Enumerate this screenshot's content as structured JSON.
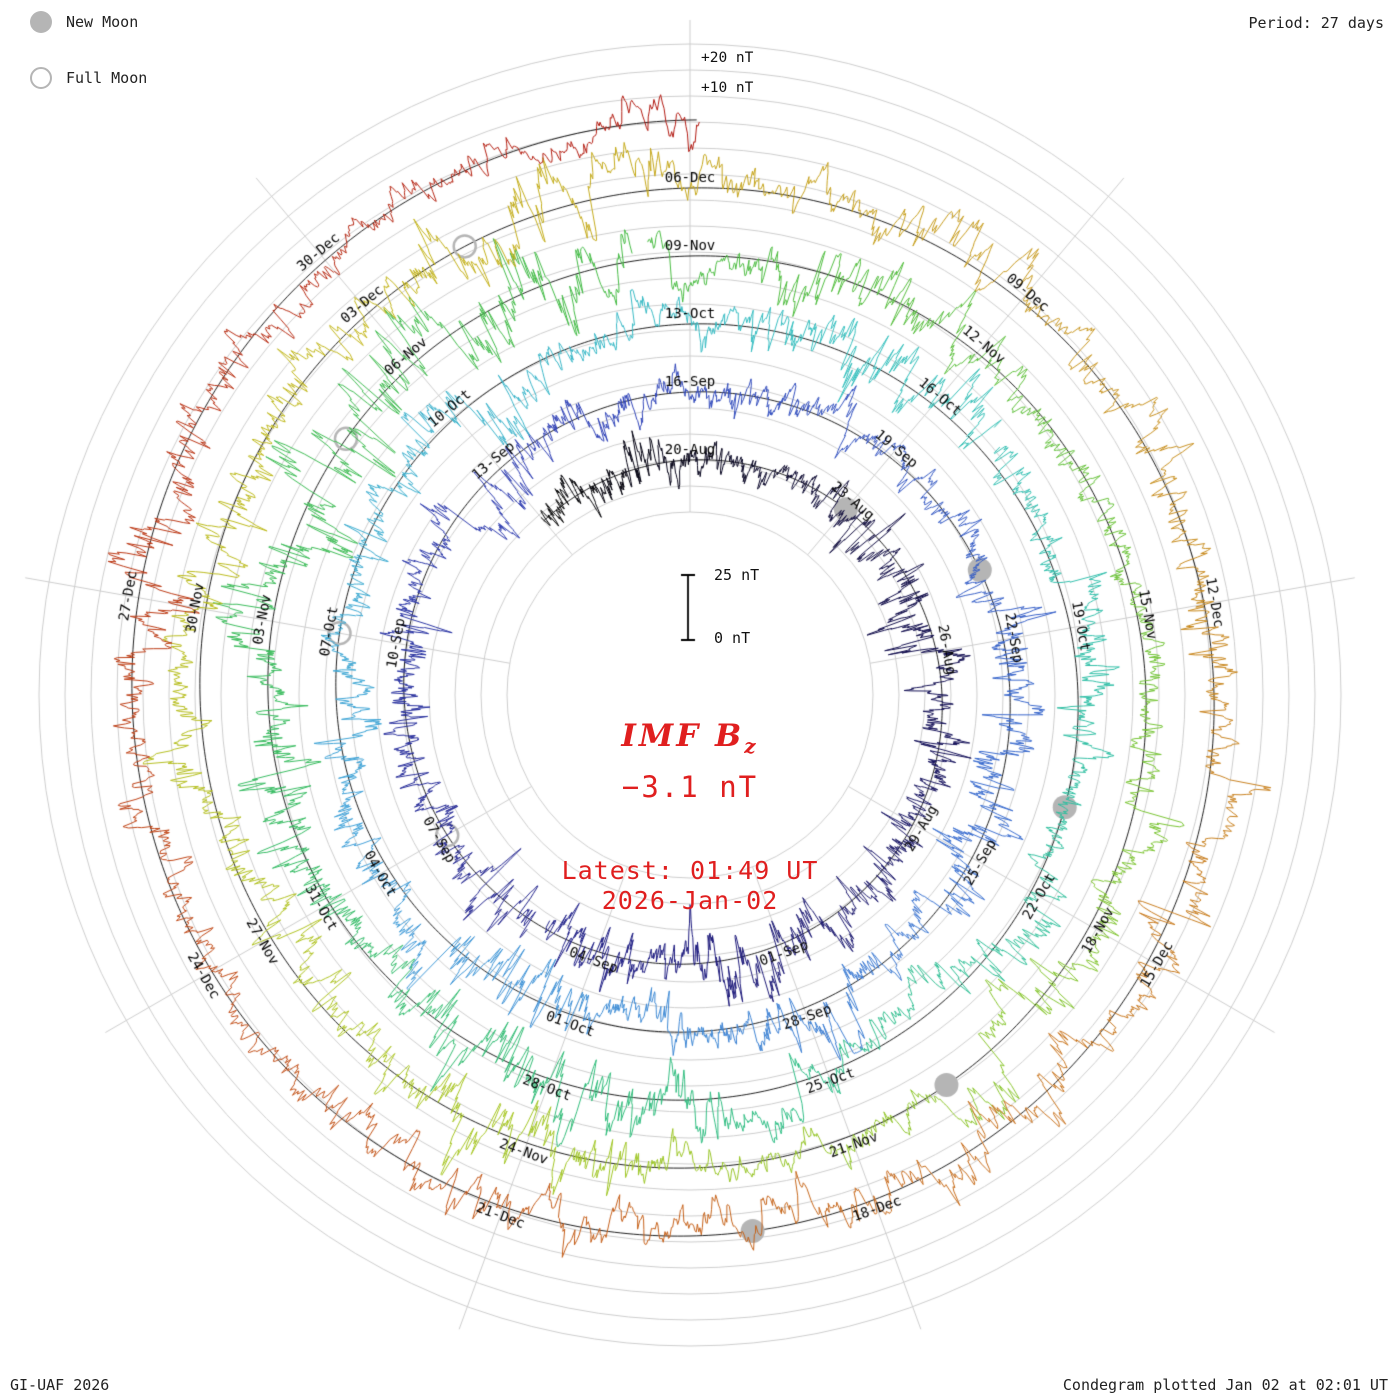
{
  "header": {
    "period_label": "Period: 27 days"
  },
  "legend": {
    "new_moon_label": "New Moon",
    "full_moon_label": "Full Moon"
  },
  "radial_labels": {
    "plus20": "+20 nT",
    "plus10": "+10 nT"
  },
  "scale_bar": {
    "top_label": "25 nT",
    "bottom_label": "0 nT"
  },
  "center": {
    "title_main": "IMF B",
    "title_sub": "z",
    "value": "−3.1 nT",
    "latest_line1": "Latest: 01:49 UT",
    "latest_line2": "2026-Jan-02"
  },
  "footer": {
    "left": "GI-UAF 2026",
    "right": "Condegram plotted Jan 02 at 02:01 UT"
  },
  "chart_data": {
    "type": "line",
    "projection": "polar_spiral_condegram",
    "title": "IMF Bz condegram",
    "quantity": "IMF Bz",
    "units": "nT",
    "period_days": 27,
    "latest": {
      "value_nT": -3.1,
      "time_ut": "01:49 UT",
      "date": "2026-Jan-02"
    },
    "radial_scale": {
      "grid_step_nT": 10,
      "outer_grid_labels": [
        "+10 nT",
        "+20 nT"
      ],
      "scale_bar_nT": [
        0,
        25
      ]
    },
    "spokes": [
      {
        "angle_deg": 0,
        "date_labels_outer_to_inner": [
          "06-Dec",
          "09-Nov",
          "13-Oct",
          "16-Sep",
          "20-Aug"
        ]
      },
      {
        "angle_deg": 40,
        "date_labels_outer_to_inner": [
          "09-Dec",
          "12-Nov",
          "16-Oct",
          "19-Sep",
          "23-Aug"
        ]
      },
      {
        "angle_deg": 80,
        "date_labels_outer_to_inner": [
          "12-Dec",
          "15-Nov",
          "19-Oct",
          "22-Sep",
          "26-Aug"
        ]
      },
      {
        "angle_deg": 120,
        "date_labels_outer_to_inner": [
          "15-Dec",
          "18-Nov",
          "22-Oct",
          "25-Sep",
          "29-Aug"
        ]
      },
      {
        "angle_deg": 160,
        "date_labels_outer_to_inner": [
          "18-Dec",
          "21-Nov",
          "25-Oct",
          "28-Sep",
          "01-Sep"
        ]
      },
      {
        "angle_deg": 200,
        "date_labels_outer_to_inner": [
          "21-Dec",
          "24-Nov",
          "28-Oct",
          "01-Oct",
          "04-Sep"
        ]
      },
      {
        "angle_deg": 240,
        "date_labels_outer_to_inner": [
          "24-Dec",
          "27-Nov",
          "31-Oct",
          "04-Oct",
          "07-Sep"
        ]
      },
      {
        "angle_deg": 280,
        "date_labels_outer_to_inner": [
          "27-Dec",
          "30-Nov",
          "03-Nov",
          "07-Oct",
          "10-Sep"
        ]
      },
      {
        "angle_deg": 320,
        "date_labels_outer_to_inner": [
          "30-Dec",
          "03-Dec",
          "06-Nov",
          "10-Oct",
          "13-Sep"
        ]
      }
    ],
    "moon_markers": {
      "new_moon_dates": [
        "2025-08-23",
        "2025-09-21",
        "2025-10-21",
        "2025-11-20",
        "2025-12-19"
      ],
      "full_moon_dates": [
        "2025-09-07",
        "2025-10-07",
        "2025-11-05",
        "2025-12-04"
      ]
    },
    "trace": {
      "start_date": "2025-08-17",
      "end_date": "2026-01-02",
      "top_reference_date": "2025-08-20",
      "description": "Continuous solar-wind IMF Bz trace spiralling outward, one 27-day solar rotation per ring; amplitude mostly within ±20 nT. Exact per-minute sample values are not recoverable from the screenshot; rendered as statistically similar noise.",
      "color_stops": [
        [
          0.0,
          "#000000"
        ],
        [
          0.05,
          "#100c45"
        ],
        [
          0.12,
          "#1e1b80"
        ],
        [
          0.2,
          "#2f3fb5"
        ],
        [
          0.28,
          "#3a6fd0"
        ],
        [
          0.35,
          "#3fa0d8"
        ],
        [
          0.42,
          "#35bfc0"
        ],
        [
          0.48,
          "#2fbf98"
        ],
        [
          0.54,
          "#33bb66"
        ],
        [
          0.6,
          "#44bb44"
        ],
        [
          0.66,
          "#77c433"
        ],
        [
          0.72,
          "#a8c623"
        ],
        [
          0.78,
          "#c2b518"
        ],
        [
          0.83,
          "#c89420"
        ],
        [
          0.88,
          "#c8701d"
        ],
        [
          0.93,
          "#c04a14"
        ],
        [
          1.0,
          "#b01510"
        ]
      ]
    }
  }
}
